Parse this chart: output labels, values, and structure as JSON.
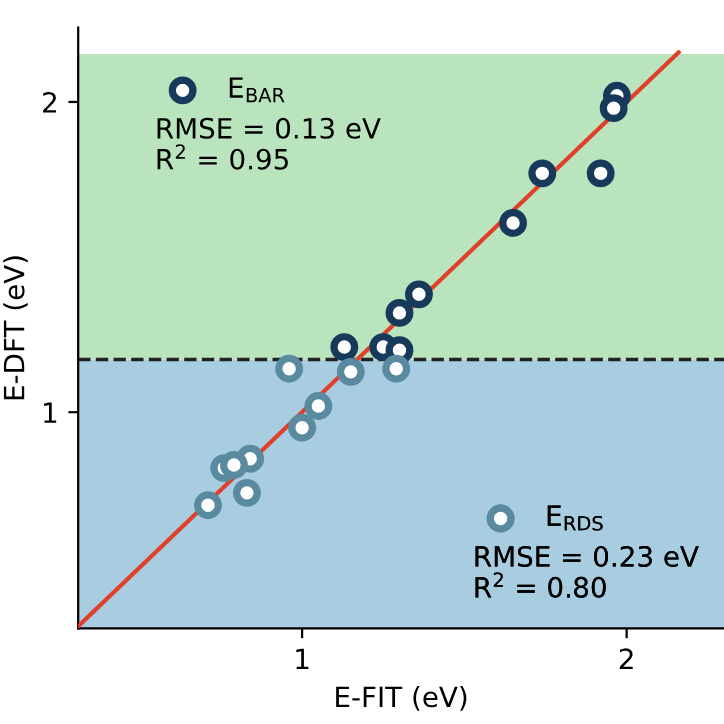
{
  "chart_data": {
    "type": "scatter",
    "xlabel": "E-FIT (eV)",
    "ylabel": "E-DFT (eV)",
    "xlim": [
      0.31,
      2.3
    ],
    "ylim": [
      0.303,
      2.24
    ],
    "xticks": [
      1,
      2
    ],
    "yticks": [
      1,
      2
    ],
    "grid": false,
    "legend": "top left",
    "series": [
      {
        "name": "E$_{BAR}$",
        "color": "#17395a",
        "marker": "circle",
        "x": [
          1.97,
          1.96,
          1.74,
          1.92,
          1.65,
          1.36,
          1.3,
          1.13,
          1.25,
          1.3
        ],
        "values": [
          2.02,
          1.98,
          1.77,
          1.77,
          1.61,
          1.38,
          1.32,
          1.21,
          1.21,
          1.2
        ]
      },
      {
        "name": "E$_{RDS}$",
        "color": "#5a8aa0",
        "marker": "circle",
        "x": [
          0.96,
          1.15,
          1.29,
          1.05,
          1.0,
          0.84,
          0.76,
          0.79,
          0.83,
          0.71
        ],
        "values": [
          1.14,
          1.13,
          1.14,
          1.02,
          0.95,
          0.85,
          0.82,
          0.83,
          0.74,
          0.7
        ]
      },
      {
        "type": "line",
        "color": "#e0402a",
        "line_style": "solid",
        "marker": "none",
        "x": [
          0.31,
          2.16
        ],
        "values": [
          0.31,
          2.16
        ]
      }
    ],
    "annotations": [
      "RMSE = 0.13 eV\nR$^{2}$ = 0.95",
      "RMSE = 0.23 eV\nR$^{2}$ = 0.80"
    ],
    "ref_lines": [
      {
        "axis": "y",
        "value": 1.17,
        "color": "#222222",
        "line_style": "dashed"
      }
    ],
    "bands": [
      {
        "axis": "y",
        "from": 1.17,
        "to": 2.155,
        "color": "#b9e4bd"
      },
      {
        "axis": "y",
        "from": 0.303,
        "to": 1.17,
        "color": "#a9cde0"
      }
    ]
  }
}
